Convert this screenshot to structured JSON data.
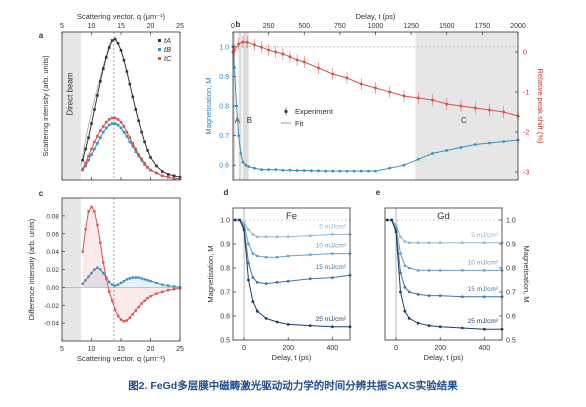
{
  "caption": "图2. FeGd多层膜中磁畴激光驱动动力学的时间分辨共振SAXS实验结果",
  "colors": {
    "black": "#333333",
    "blue": "#3d8fbf",
    "red": "#d9534f",
    "grey": "#888888",
    "shade": "#e6e6e6",
    "axis_blue": "#2e86c1",
    "axis_red": "#c0392b",
    "caption": "#1f4e8c"
  },
  "chart_data": [
    {
      "panel": "a",
      "type": "scatter",
      "xlabel": "Scattering vector, q (μm⁻¹)",
      "ylabel": "Scattering intensity (arb. units)",
      "xlim": [
        5,
        25
      ],
      "ylim": [
        0,
        1.05
      ],
      "xticks": [
        5,
        10,
        15,
        20,
        25
      ],
      "yticks": [
        0,
        0.2,
        0.4,
        0.6,
        0.8,
        1.0
      ],
      "shaded_label": "Direct beam",
      "shaded_range": [
        5,
        8.2
      ],
      "vline": 13.8,
      "legend": [
        "tA",
        "tB",
        "tC"
      ],
      "series": [
        {
          "name": "tA",
          "color": "black",
          "x": [
            8.5,
            9,
            9.5,
            10,
            10.5,
            11,
            11.5,
            12,
            12.5,
            13,
            13.5,
            14,
            14.5,
            15,
            15.5,
            16,
            16.5,
            17,
            17.5,
            18,
            18.5,
            19,
            19.5,
            20,
            21,
            22,
            23,
            24,
            25
          ],
          "y": [
            0.14,
            0.22,
            0.3,
            0.4,
            0.5,
            0.6,
            0.7,
            0.79,
            0.87,
            0.94,
            0.99,
            1.0,
            0.97,
            0.92,
            0.85,
            0.77,
            0.68,
            0.59,
            0.5,
            0.42,
            0.34,
            0.27,
            0.21,
            0.16,
            0.1,
            0.06,
            0.04,
            0.03,
            0.02
          ]
        },
        {
          "name": "tB",
          "color": "blue",
          "x": [
            8.5,
            9,
            9.5,
            10,
            10.5,
            11,
            11.5,
            12,
            12.5,
            13,
            13.5,
            14,
            14.5,
            15,
            15.5,
            16,
            16.5,
            17,
            17.5,
            18,
            18.5,
            19,
            19.5,
            20,
            21,
            22,
            23,
            24,
            25
          ],
          "y": [
            0.07,
            0.1,
            0.14,
            0.18,
            0.22,
            0.26,
            0.3,
            0.34,
            0.37,
            0.39,
            0.4,
            0.4,
            0.39,
            0.37,
            0.34,
            0.31,
            0.27,
            0.24,
            0.2,
            0.17,
            0.14,
            0.11,
            0.09,
            0.07,
            0.05,
            0.03,
            0.02,
            0.01,
            0.01
          ]
        },
        {
          "name": "tC",
          "color": "red",
          "x": [
            8.5,
            9,
            9.5,
            10,
            10.5,
            11,
            11.5,
            12,
            12.5,
            13,
            13.5,
            14,
            14.5,
            15,
            15.5,
            16,
            16.5,
            17,
            17.5,
            18,
            18.5,
            19,
            19.5,
            20,
            21,
            22,
            23,
            24,
            25
          ],
          "y": [
            0.08,
            0.12,
            0.17,
            0.22,
            0.27,
            0.31,
            0.35,
            0.38,
            0.41,
            0.43,
            0.44,
            0.44,
            0.43,
            0.41,
            0.38,
            0.34,
            0.3,
            0.26,
            0.22,
            0.18,
            0.15,
            0.12,
            0.09,
            0.07,
            0.05,
            0.03,
            0.02,
            0.01,
            0.01
          ]
        }
      ]
    },
    {
      "panel": "b",
      "type": "scatter",
      "xlabel": "Delay, t (ps)",
      "ylabel": "Magnetisation, M",
      "ylabel_right": "Relative peak shift (%)",
      "xlim": [
        0,
        2000
      ],
      "ylim": [
        0.55,
        1.05
      ],
      "ylim_right": [
        -3.2,
        0.5
      ],
      "xticks": [
        0,
        250,
        500,
        750,
        1000,
        1250,
        1500,
        1750,
        2000
      ],
      "yticks": [
        0.6,
        0.7,
        0.8,
        0.9,
        1.0
      ],
      "yticks_right": [
        -3,
        -2,
        -1,
        0
      ],
      "shaded_range": [
        1280,
        2000
      ],
      "bands": [
        [
          0,
          15
        ],
        [
          40,
          60
        ],
        [
          70,
          110
        ]
      ],
      "region_labels": [
        {
          "text": "A",
          "x": 30
        },
        {
          "text": "B",
          "x": 115
        },
        {
          "text": "C",
          "x": 1620
        }
      ],
      "legend": [
        "Experiment",
        "Fit"
      ],
      "series": [
        {
          "name": "Magnetisation",
          "color": "blue",
          "x": [
            -50,
            -30,
            -10,
            10,
            25,
            40,
            55,
            70,
            90,
            110,
            150,
            200,
            250,
            300,
            350,
            400,
            450,
            500,
            550,
            600,
            650,
            700,
            750,
            800,
            850,
            900,
            950,
            1000,
            1100,
            1200,
            1300,
            1400,
            1500,
            1600,
            1700,
            1800,
            1900,
            2000
          ],
          "y": [
            1.0,
            1.0,
            1.0,
            0.93,
            0.8,
            0.7,
            0.64,
            0.61,
            0.6,
            0.595,
            0.59,
            0.585,
            0.585,
            0.585,
            0.583,
            0.583,
            0.582,
            0.582,
            0.581,
            0.581,
            0.58,
            0.58,
            0.58,
            0.58,
            0.58,
            0.58,
            0.58,
            0.58,
            0.59,
            0.6,
            0.62,
            0.64,
            0.65,
            0.66,
            0.67,
            0.675,
            0.68,
            0.685
          ]
        },
        {
          "name": "Relative peak shift",
          "color": "red",
          "x": [
            -50,
            -20,
            10,
            40,
            70,
            100,
            150,
            200,
            250,
            300,
            350,
            400,
            450,
            500,
            600,
            700,
            800,
            900,
            1000,
            1100,
            1200,
            1300,
            1400,
            1500,
            1600,
            1700,
            1800,
            1900,
            2000
          ],
          "y": [
            0.0,
            0.0,
            0.05,
            0.2,
            0.25,
            0.24,
            0.18,
            0.12,
            0.05,
            0.0,
            -0.05,
            -0.12,
            -0.2,
            -0.25,
            -0.4,
            -0.55,
            -0.65,
            -0.8,
            -0.9,
            -1.0,
            -1.1,
            -1.15,
            -1.2,
            -1.3,
            -1.35,
            -1.4,
            -1.45,
            -1.5,
            -1.6
          ]
        }
      ]
    },
    {
      "panel": "c",
      "type": "scatter",
      "xlabel": "Scattering vector, q (μm⁻¹)",
      "ylabel": "Difference intensity (arb. units)",
      "xlim": [
        5,
        25
      ],
      "ylim": [
        -0.06,
        0.1
      ],
      "xticks": [
        5,
        10,
        15,
        20,
        25
      ],
      "yticks": [
        -0.04,
        -0.02,
        0,
        0.02,
        0.04,
        0.06,
        0.08
      ],
      "shaded_range": [
        5,
        8.2
      ],
      "vline": 13.8,
      "series": [
        {
          "name": "blue",
          "color": "blue",
          "x": [
            8.5,
            9,
            9.5,
            10,
            10.5,
            11,
            11.5,
            12,
            12.5,
            13,
            13.5,
            14,
            14.5,
            15,
            15.5,
            16,
            16.5,
            17,
            17.5,
            18,
            18.5,
            19,
            19.5,
            20,
            21,
            22,
            23,
            24,
            25
          ],
          "y": [
            0.004,
            0.008,
            0.012,
            0.016,
            0.02,
            0.022,
            0.02,
            0.016,
            0.011,
            0.006,
            0.003,
            0.002,
            0.003,
            0.005,
            0.007,
            0.009,
            0.01,
            0.011,
            0.011,
            0.011,
            0.01,
            0.009,
            0.008,
            0.007,
            0.005,
            0.003,
            0.002,
            0.001,
            0.0
          ]
        },
        {
          "name": "red",
          "color": "red",
          "x": [
            8.5,
            9,
            9.5,
            10,
            10.5,
            11,
            11.5,
            12,
            12.5,
            13,
            13.5,
            14,
            14.5,
            15,
            15.5,
            16,
            16.5,
            17,
            17.5,
            18,
            18.5,
            19,
            19.5,
            20,
            21,
            22,
            23,
            24,
            25
          ],
          "y": [
            0.04,
            0.065,
            0.085,
            0.09,
            0.085,
            0.07,
            0.05,
            0.028,
            0.01,
            -0.005,
            -0.015,
            -0.025,
            -0.032,
            -0.036,
            -0.038,
            -0.037,
            -0.034,
            -0.03,
            -0.026,
            -0.022,
            -0.018,
            -0.015,
            -0.012,
            -0.01,
            -0.007,
            -0.005,
            -0.003,
            -0.002,
            -0.001
          ]
        }
      ]
    },
    {
      "panel": "d",
      "type": "line",
      "element": "Fe",
      "xlabel": "Delay, t (ps)",
      "ylabel": "Magnetisation, M",
      "xlim": [
        -50,
        480
      ],
      "ylim": [
        0.5,
        1.05
      ],
      "xticks": [
        0,
        200,
        400
      ],
      "yticks": [
        0.5,
        0.6,
        0.7,
        0.8,
        0.9,
        1.0
      ],
      "series": [
        {
          "name": "5 mJ/cm²",
          "color": "#93b9d6",
          "x": [
            -40,
            -20,
            0,
            20,
            40,
            60,
            100,
            150,
            200,
            300,
            400,
            480
          ],
          "y": [
            1.0,
            1.0,
            0.99,
            0.96,
            0.94,
            0.93,
            0.93,
            0.93,
            0.93,
            0.935,
            0.94,
            0.94
          ]
        },
        {
          "name": "10 mJ/cm²",
          "color": "#6a9fc6",
          "x": [
            -40,
            -20,
            0,
            20,
            40,
            60,
            100,
            150,
            200,
            300,
            400,
            480
          ],
          "y": [
            1.0,
            1.0,
            0.98,
            0.9,
            0.86,
            0.85,
            0.845,
            0.845,
            0.85,
            0.855,
            0.86,
            0.86
          ]
        },
        {
          "name": "15 mJ/cm²",
          "color": "#3f77a6",
          "x": [
            -40,
            -20,
            0,
            20,
            40,
            60,
            100,
            150,
            200,
            300,
            400,
            480
          ],
          "y": [
            1.0,
            1.0,
            0.97,
            0.82,
            0.76,
            0.74,
            0.735,
            0.74,
            0.745,
            0.755,
            0.76,
            0.77
          ]
        },
        {
          "name": "25 mJ/cm²",
          "color": "#1b3f6b",
          "x": [
            -40,
            -20,
            0,
            20,
            40,
            60,
            100,
            150,
            200,
            300,
            400,
            480
          ],
          "y": [
            1.0,
            1.0,
            0.96,
            0.75,
            0.66,
            0.62,
            0.59,
            0.575,
            0.565,
            0.56,
            0.555,
            0.555
          ]
        }
      ]
    },
    {
      "panel": "e",
      "type": "line",
      "element": "Gd",
      "xlabel": "Delay, t (ps)",
      "ylabel": "Magnetisation, M",
      "xlim": [
        -50,
        480
      ],
      "ylim": [
        0.5,
        1.05
      ],
      "xticks": [
        0,
        200,
        400
      ],
      "yticks": [
        0.5,
        0.6,
        0.7,
        0.8,
        0.9,
        1.0
      ],
      "series": [
        {
          "name": "5 mJ/cm²",
          "color": "#93b9d6",
          "x": [
            -40,
            -20,
            0,
            20,
            40,
            60,
            100,
            150,
            200,
            300,
            400,
            480
          ],
          "y": [
            1.0,
            1.0,
            0.98,
            0.93,
            0.91,
            0.905,
            0.905,
            0.905,
            0.905,
            0.905,
            0.905,
            0.905
          ]
        },
        {
          "name": "10 mJ/cm²",
          "color": "#6a9fc6",
          "x": [
            -40,
            -20,
            0,
            20,
            40,
            60,
            100,
            150,
            200,
            300,
            400,
            480
          ],
          "y": [
            1.0,
            1.0,
            0.97,
            0.86,
            0.81,
            0.8,
            0.79,
            0.79,
            0.79,
            0.79,
            0.79,
            0.79
          ]
        },
        {
          "name": "15 mJ/cm²",
          "color": "#3f77a6",
          "x": [
            -40,
            -20,
            0,
            20,
            40,
            60,
            100,
            150,
            200,
            300,
            400,
            480
          ],
          "y": [
            1.0,
            1.0,
            0.96,
            0.78,
            0.72,
            0.7,
            0.69,
            0.685,
            0.685,
            0.68,
            0.68,
            0.68
          ]
        },
        {
          "name": "25 mJ/cm²",
          "color": "#1b3f6b",
          "x": [
            -40,
            -20,
            0,
            20,
            40,
            60,
            100,
            150,
            200,
            300,
            400,
            480
          ],
          "y": [
            1.0,
            1.0,
            0.95,
            0.7,
            0.62,
            0.59,
            0.57,
            0.56,
            0.555,
            0.55,
            0.545,
            0.545
          ]
        }
      ]
    }
  ]
}
